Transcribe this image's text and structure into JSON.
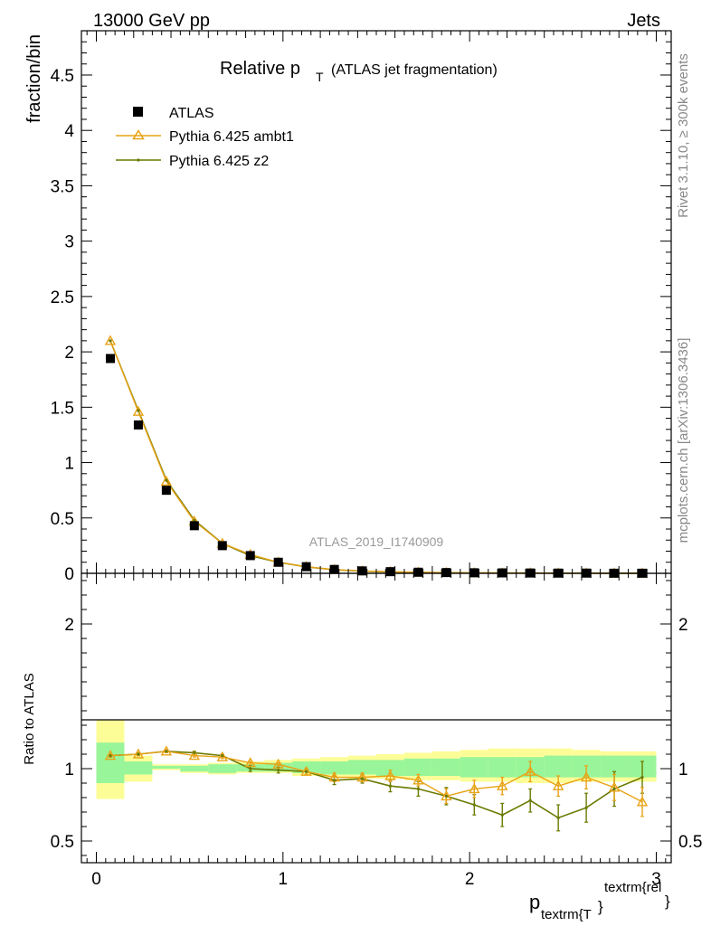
{
  "header": {
    "energy_label": "13000 GeV pp",
    "process_label": "Jets"
  },
  "side_labels": {
    "rivet": "Rivet 3.1.10, ≥ 300k events",
    "mcplots": "mcplots.cern.ch [arXiv:1306.3436]"
  },
  "analysis_id": "ATLAS_2019_I1740909",
  "colors": {
    "data": "#000000",
    "ambt1": "#e8a317",
    "z2": "#6b7a00",
    "band_outer": "#fdfd98",
    "band_inner": "#99f599"
  },
  "chart_data": [
    {
      "type": "line",
      "title": {
        "main": "Relative p",
        "sub": "T",
        "rest": "(ATLAS jet fragmentation)"
      },
      "ylabel": "fraction/bin",
      "xlim": [
        -0.08,
        3.08
      ],
      "ylim": [
        0,
        4.9
      ],
      "y_ticks": [
        0,
        0.5,
        1,
        1.5,
        2,
        2.5,
        3,
        3.5,
        4,
        4.5
      ],
      "y_tick_labels": [
        "0",
        "0.5",
        "1",
        "1.5",
        "2",
        "2.5",
        "3",
        "3.5",
        "4",
        "4.5"
      ],
      "legend_position": "top-left",
      "x": [
        0.075,
        0.225,
        0.375,
        0.525,
        0.675,
        0.825,
        0.975,
        1.125,
        1.275,
        1.425,
        1.575,
        1.725,
        1.875,
        2.025,
        2.175,
        2.325,
        2.475,
        2.625,
        2.775,
        2.925
      ],
      "series": [
        {
          "name": "ATLAS",
          "style": "markers",
          "values": [
            1.94,
            1.34,
            0.75,
            0.43,
            0.25,
            0.16,
            0.1,
            0.06,
            0.035,
            0.022,
            0.015,
            0.01,
            0.007,
            0.005,
            0.004,
            0.003,
            0.002,
            0.002,
            0.001,
            0.001
          ]
        },
        {
          "name": "Pythia 6.425 ambt1",
          "style": "line-triangle",
          "values": [
            2.1,
            1.46,
            0.83,
            0.47,
            0.27,
            0.17,
            0.1,
            0.06,
            0.033,
            0.021,
            0.014,
            0.009,
            0.006,
            0.004,
            0.003,
            0.003,
            0.002,
            0.002,
            0.001,
            0.001
          ]
        },
        {
          "name": "Pythia 6.425 z2",
          "style": "line-dot",
          "values": [
            2.1,
            1.47,
            0.84,
            0.48,
            0.27,
            0.16,
            0.1,
            0.059,
            0.032,
            0.02,
            0.013,
            0.0086,
            0.0057,
            0.0038,
            0.0027,
            0.0024,
            0.0013,
            0.0015,
            0.0009,
            0.0009
          ]
        }
      ]
    },
    {
      "type": "line",
      "ylabel": "Ratio to ATLAS",
      "xlabel": {
        "main": "p",
        "sub": "textrm{T",
        "brace": "}",
        "sup": "textrm{rel",
        "end": "}"
      },
      "xlim": [
        -0.08,
        3.08
      ],
      "ylim": [
        0.35,
        2.35
      ],
      "x_ticks": [
        0,
        1,
        2,
        3
      ],
      "x_tick_labels": [
        "0",
        "1",
        "2",
        "3"
      ],
      "y_ticks": [
        0.5,
        1,
        2
      ],
      "y_tick_labels": [
        "0.5",
        "1",
        "2"
      ],
      "bins": [
        0,
        0.15,
        0.3,
        0.45,
        0.6,
        0.75,
        0.9,
        1.05,
        1.2,
        1.35,
        1.5,
        1.65,
        1.8,
        1.95,
        2.1,
        2.25,
        2.4,
        2.55,
        2.7,
        2.85,
        3.0
      ],
      "band_outer": {
        "lo": [
          0.79,
          0.91,
          0.99,
          0.97,
          0.96,
          0.97,
          0.97,
          0.95,
          0.94,
          0.93,
          0.93,
          0.92,
          0.92,
          0.91,
          0.91,
          0.9,
          0.9,
          0.91,
          0.91,
          0.91
        ],
        "hi": [
          1.34,
          1.09,
          1.03,
          1.03,
          1.04,
          1.05,
          1.06,
          1.07,
          1.08,
          1.09,
          1.1,
          1.11,
          1.12,
          1.13,
          1.14,
          1.14,
          1.14,
          1.13,
          1.12,
          1.12
        ]
      },
      "band_inner": {
        "lo": [
          0.9,
          0.96,
          1.0,
          0.98,
          0.97,
          0.98,
          0.98,
          0.97,
          0.96,
          0.96,
          0.95,
          0.95,
          0.95,
          0.94,
          0.94,
          0.94,
          0.94,
          0.94,
          0.94,
          0.94
        ],
        "hi": [
          1.18,
          1.05,
          1.02,
          1.02,
          1.03,
          1.03,
          1.04,
          1.05,
          1.05,
          1.06,
          1.06,
          1.07,
          1.07,
          1.08,
          1.08,
          1.08,
          1.09,
          1.09,
          1.09,
          1.09
        ]
      },
      "x": [
        0.075,
        0.225,
        0.375,
        0.525,
        0.675,
        0.825,
        0.975,
        1.125,
        1.275,
        1.425,
        1.575,
        1.725,
        1.875,
        2.025,
        2.175,
        2.325,
        2.475,
        2.625,
        2.775,
        2.925
      ],
      "series": [
        {
          "name": "Pythia 6.425 ambt1",
          "values": [
            1.09,
            1.1,
            1.12,
            1.09,
            1.08,
            1.04,
            1.03,
            0.98,
            0.94,
            0.94,
            0.95,
            0.92,
            0.81,
            0.86,
            0.88,
            0.98,
            0.88,
            0.94,
            0.87,
            0.77
          ],
          "err": [
            0.01,
            0.01,
            0.01,
            0.01,
            0.01,
            0.01,
            0.01,
            0.02,
            0.03,
            0.03,
            0.04,
            0.04,
            0.05,
            0.06,
            0.06,
            0.07,
            0.07,
            0.08,
            0.09,
            0.1
          ]
        },
        {
          "name": "Pythia 6.425 z2",
          "values": [
            1.09,
            1.1,
            1.12,
            1.11,
            1.09,
            1.0,
            0.99,
            0.98,
            0.92,
            0.93,
            0.88,
            0.86,
            0.81,
            0.75,
            0.68,
            0.78,
            0.66,
            0.73,
            0.86,
            0.94
          ],
          "err": [
            0.01,
            0.01,
            0.01,
            0.01,
            0.01,
            0.02,
            0.02,
            0.02,
            0.03,
            0.03,
            0.04,
            0.05,
            0.06,
            0.07,
            0.08,
            0.08,
            0.09,
            0.1,
            0.12,
            0.11
          ]
        }
      ]
    }
  ]
}
